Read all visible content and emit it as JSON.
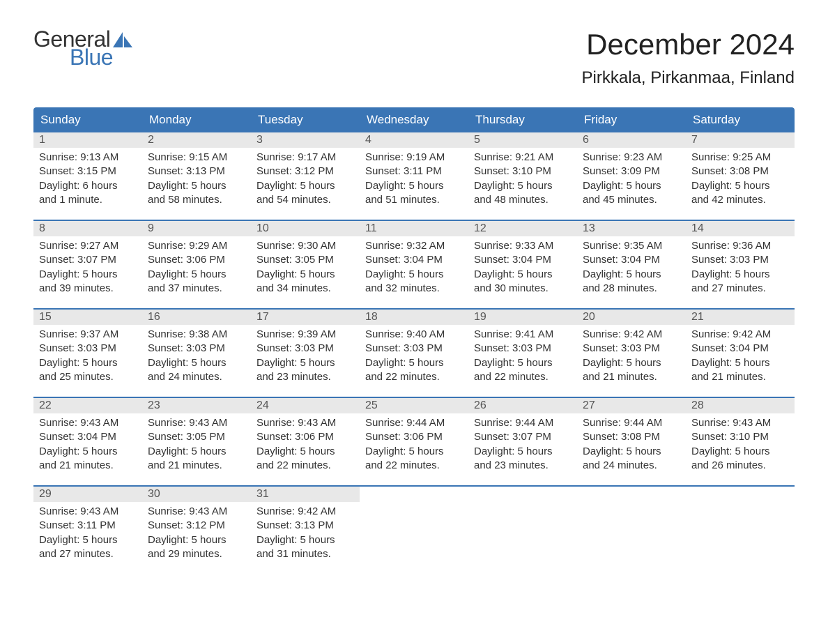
{
  "logo": {
    "text_top": "General",
    "text_bottom": "Blue",
    "icon_name": "sail-icon",
    "color_gray": "#333333",
    "color_blue": "#3a75b5"
  },
  "title": {
    "month": "December 2024",
    "location": "Pirkkala, Pirkanmaa, Finland"
  },
  "styling": {
    "header_bg": "#3a75b5",
    "header_text_color": "#ffffff",
    "daynum_bg": "#e8e8e8",
    "week_border_color": "#3a75b5",
    "body_text_color": "#333333",
    "background_color": "#ffffff",
    "day_header_fontsize": 17,
    "month_title_fontsize": 42,
    "location_fontsize": 24,
    "body_fontsize": 15
  },
  "day_headers": [
    "Sunday",
    "Monday",
    "Tuesday",
    "Wednesday",
    "Thursday",
    "Friday",
    "Saturday"
  ],
  "weeks": [
    [
      {
        "day": "1",
        "sunrise": "Sunrise: 9:13 AM",
        "sunset": "Sunset: 3:15 PM",
        "daylight": "Daylight: 6 hours and 1 minute."
      },
      {
        "day": "2",
        "sunrise": "Sunrise: 9:15 AM",
        "sunset": "Sunset: 3:13 PM",
        "daylight": "Daylight: 5 hours and 58 minutes."
      },
      {
        "day": "3",
        "sunrise": "Sunrise: 9:17 AM",
        "sunset": "Sunset: 3:12 PM",
        "daylight": "Daylight: 5 hours and 54 minutes."
      },
      {
        "day": "4",
        "sunrise": "Sunrise: 9:19 AM",
        "sunset": "Sunset: 3:11 PM",
        "daylight": "Daylight: 5 hours and 51 minutes."
      },
      {
        "day": "5",
        "sunrise": "Sunrise: 9:21 AM",
        "sunset": "Sunset: 3:10 PM",
        "daylight": "Daylight: 5 hours and 48 minutes."
      },
      {
        "day": "6",
        "sunrise": "Sunrise: 9:23 AM",
        "sunset": "Sunset: 3:09 PM",
        "daylight": "Daylight: 5 hours and 45 minutes."
      },
      {
        "day": "7",
        "sunrise": "Sunrise: 9:25 AM",
        "sunset": "Sunset: 3:08 PM",
        "daylight": "Daylight: 5 hours and 42 minutes."
      }
    ],
    [
      {
        "day": "8",
        "sunrise": "Sunrise: 9:27 AM",
        "sunset": "Sunset: 3:07 PM",
        "daylight": "Daylight: 5 hours and 39 minutes."
      },
      {
        "day": "9",
        "sunrise": "Sunrise: 9:29 AM",
        "sunset": "Sunset: 3:06 PM",
        "daylight": "Daylight: 5 hours and 37 minutes."
      },
      {
        "day": "10",
        "sunrise": "Sunrise: 9:30 AM",
        "sunset": "Sunset: 3:05 PM",
        "daylight": "Daylight: 5 hours and 34 minutes."
      },
      {
        "day": "11",
        "sunrise": "Sunrise: 9:32 AM",
        "sunset": "Sunset: 3:04 PM",
        "daylight": "Daylight: 5 hours and 32 minutes."
      },
      {
        "day": "12",
        "sunrise": "Sunrise: 9:33 AM",
        "sunset": "Sunset: 3:04 PM",
        "daylight": "Daylight: 5 hours and 30 minutes."
      },
      {
        "day": "13",
        "sunrise": "Sunrise: 9:35 AM",
        "sunset": "Sunset: 3:04 PM",
        "daylight": "Daylight: 5 hours and 28 minutes."
      },
      {
        "day": "14",
        "sunrise": "Sunrise: 9:36 AM",
        "sunset": "Sunset: 3:03 PM",
        "daylight": "Daylight: 5 hours and 27 minutes."
      }
    ],
    [
      {
        "day": "15",
        "sunrise": "Sunrise: 9:37 AM",
        "sunset": "Sunset: 3:03 PM",
        "daylight": "Daylight: 5 hours and 25 minutes."
      },
      {
        "day": "16",
        "sunrise": "Sunrise: 9:38 AM",
        "sunset": "Sunset: 3:03 PM",
        "daylight": "Daylight: 5 hours and 24 minutes."
      },
      {
        "day": "17",
        "sunrise": "Sunrise: 9:39 AM",
        "sunset": "Sunset: 3:03 PM",
        "daylight": "Daylight: 5 hours and 23 minutes."
      },
      {
        "day": "18",
        "sunrise": "Sunrise: 9:40 AM",
        "sunset": "Sunset: 3:03 PM",
        "daylight": "Daylight: 5 hours and 22 minutes."
      },
      {
        "day": "19",
        "sunrise": "Sunrise: 9:41 AM",
        "sunset": "Sunset: 3:03 PM",
        "daylight": "Daylight: 5 hours and 22 minutes."
      },
      {
        "day": "20",
        "sunrise": "Sunrise: 9:42 AM",
        "sunset": "Sunset: 3:03 PM",
        "daylight": "Daylight: 5 hours and 21 minutes."
      },
      {
        "day": "21",
        "sunrise": "Sunrise: 9:42 AM",
        "sunset": "Sunset: 3:04 PM",
        "daylight": "Daylight: 5 hours and 21 minutes."
      }
    ],
    [
      {
        "day": "22",
        "sunrise": "Sunrise: 9:43 AM",
        "sunset": "Sunset: 3:04 PM",
        "daylight": "Daylight: 5 hours and 21 minutes."
      },
      {
        "day": "23",
        "sunrise": "Sunrise: 9:43 AM",
        "sunset": "Sunset: 3:05 PM",
        "daylight": "Daylight: 5 hours and 21 minutes."
      },
      {
        "day": "24",
        "sunrise": "Sunrise: 9:43 AM",
        "sunset": "Sunset: 3:06 PM",
        "daylight": "Daylight: 5 hours and 22 minutes."
      },
      {
        "day": "25",
        "sunrise": "Sunrise: 9:44 AM",
        "sunset": "Sunset: 3:06 PM",
        "daylight": "Daylight: 5 hours and 22 minutes."
      },
      {
        "day": "26",
        "sunrise": "Sunrise: 9:44 AM",
        "sunset": "Sunset: 3:07 PM",
        "daylight": "Daylight: 5 hours and 23 minutes."
      },
      {
        "day": "27",
        "sunrise": "Sunrise: 9:44 AM",
        "sunset": "Sunset: 3:08 PM",
        "daylight": "Daylight: 5 hours and 24 minutes."
      },
      {
        "day": "28",
        "sunrise": "Sunrise: 9:43 AM",
        "sunset": "Sunset: 3:10 PM",
        "daylight": "Daylight: 5 hours and 26 minutes."
      }
    ],
    [
      {
        "day": "29",
        "sunrise": "Sunrise: 9:43 AM",
        "sunset": "Sunset: 3:11 PM",
        "daylight": "Daylight: 5 hours and 27 minutes."
      },
      {
        "day": "30",
        "sunrise": "Sunrise: 9:43 AM",
        "sunset": "Sunset: 3:12 PM",
        "daylight": "Daylight: 5 hours and 29 minutes."
      },
      {
        "day": "31",
        "sunrise": "Sunrise: 9:42 AM",
        "sunset": "Sunset: 3:13 PM",
        "daylight": "Daylight: 5 hours and 31 minutes."
      },
      {
        "day": "",
        "empty": true
      },
      {
        "day": "",
        "empty": true
      },
      {
        "day": "",
        "empty": true
      },
      {
        "day": "",
        "empty": true
      }
    ]
  ]
}
